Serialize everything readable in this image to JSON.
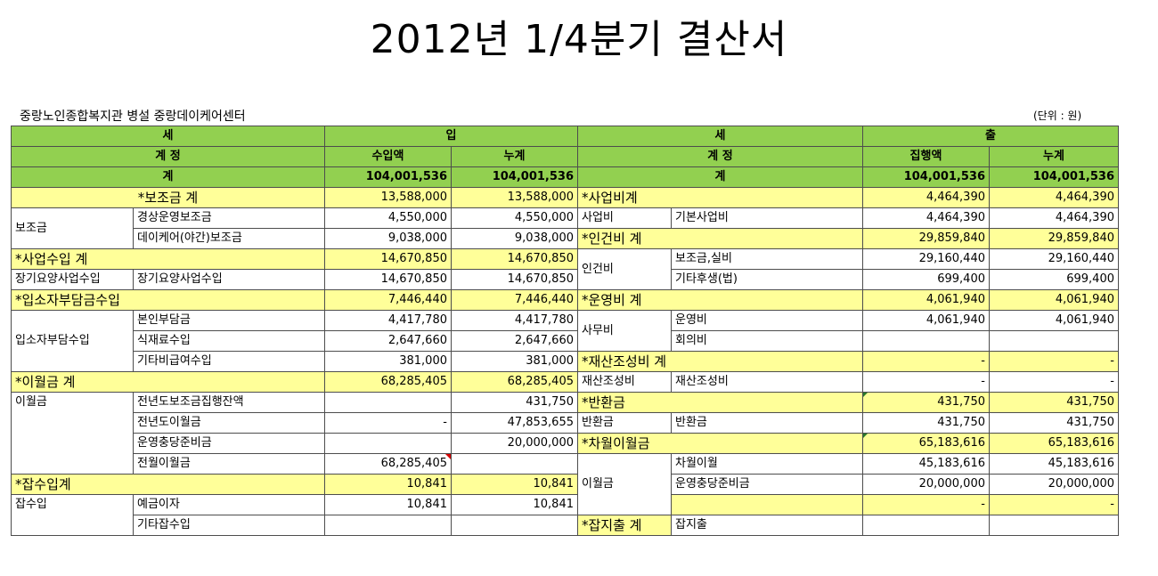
{
  "title": "2012년 1/4분기 결산서",
  "organization": "중랑노인종합복지관 병설 중랑데이케어센터",
  "unit_note": "(단위 : 원)",
  "header": {
    "income_a": "세",
    "income_b": "입",
    "expense_a": "세",
    "expense_b": "출",
    "account": "계 정",
    "income_amount": "수입액",
    "cumulative": "누계",
    "expense_amount": "집행액",
    "total": "계",
    "income_total": "104,001,536",
    "income_cum": "104,001,536",
    "expense_total": "104,001,536",
    "expense_cum": "104,001,536"
  },
  "income": {
    "subsidy_total": {
      "label": "*보조금 계",
      "amount": "13,588,000",
      "cum": "13,588,000"
    },
    "subsidy_group": "보조금",
    "subsidy_op": {
      "label": "경상운영보조금",
      "amount": "4,550,000",
      "cum": "4,550,000"
    },
    "subsidy_day": {
      "label": "데이케어(야간)보조금",
      "amount": "9,038,000",
      "cum": "9,038,000"
    },
    "business_total": {
      "label": "*사업수입 계",
      "amount": "14,670,850",
      "cum": "14,670,850"
    },
    "ltc_group": "장기요양사업수입",
    "ltc": {
      "label": "장기요양사업수입",
      "amount": "14,670,850",
      "cum": "14,670,850"
    },
    "resident_total": {
      "label": "*입소자부담금수입",
      "amount": "7,446,440",
      "cum": "7,446,440"
    },
    "resident_group": "입소자부담수입",
    "self_pay": {
      "label": "본인부담금",
      "amount": "4,417,780",
      "cum": "4,417,780"
    },
    "food": {
      "label": "식재료수입",
      "amount": "2,647,660",
      "cum": "2,647,660"
    },
    "other_nonpay": {
      "label": "기타비급여수입",
      "amount": "381,000",
      "cum": "381,000"
    },
    "carry_total": {
      "label": "*이월금 계",
      "amount": "68,285,405",
      "cum": "68,285,405"
    },
    "carry_group": "이월금",
    "prev_subsidy": {
      "label": "전년도보조금집행잔액",
      "amount": "",
      "cum": "431,750"
    },
    "prev_carry": {
      "label": "전년도이월금",
      "amount": "-",
      "cum": "47,853,655"
    },
    "reserve": {
      "label": "운영충당준비금",
      "amount": "",
      "cum": "20,000,000"
    },
    "prev_month": {
      "label": "전월이월금",
      "amount": "68,285,405",
      "cum": ""
    },
    "misc_total": {
      "label": "*잡수입계",
      "amount": "10,841",
      "cum": "10,841"
    },
    "misc_group": "잡수입",
    "interest": {
      "label": "예금이자",
      "amount": "10,841",
      "cum": "10,841"
    },
    "other_misc": {
      "label": "기타잡수입",
      "amount": "",
      "cum": ""
    }
  },
  "expense": {
    "project_total": {
      "label": "*사업비계",
      "amount": "4,464,390",
      "cum": "4,464,390"
    },
    "project_group": "사업비",
    "basic_project": {
      "label": "기본사업비",
      "amount": "4,464,390",
      "cum": "4,464,390"
    },
    "personnel_total": {
      "label": "*인건비 계",
      "amount": "29,859,840",
      "cum": "29,859,840"
    },
    "personnel_group": "인건비",
    "salary": {
      "label": "보조금,실비",
      "amount": "29,160,440",
      "cum": "29,160,440"
    },
    "welfare": {
      "label": "기타후생(법)",
      "amount": "699,400",
      "cum": "699,400"
    },
    "operation_total": {
      "label": "*운영비 계",
      "amount": "4,061,940",
      "cum": "4,061,940"
    },
    "office_group": "사무비",
    "operation": {
      "label": "운영비",
      "amount": "4,061,940",
      "cum": "4,061,940"
    },
    "meeting": {
      "label": "회의비",
      "amount": "",
      "cum": ""
    },
    "asset_total": {
      "label": "*재산조성비 계",
      "amount": "-",
      "cum": "-"
    },
    "asset_group": "재산조성비",
    "asset": {
      "label": "재산조성비",
      "amount": "-",
      "cum": "-"
    },
    "refund_total": {
      "label": "*반환금",
      "amount": "431,750",
      "cum": "431,750"
    },
    "refund_group": "반환금",
    "refund": {
      "label": "반환금",
      "amount": "431,750",
      "cum": "431,750"
    },
    "next_total": {
      "label": "*차월이월금",
      "amount": "65,183,616",
      "cum": "65,183,616"
    },
    "next_group": "이월금",
    "next_carry": {
      "label": "차월이월",
      "amount": "45,183,616",
      "cum": "45,183,616"
    },
    "next_reserve": {
      "label": "운영충당준비금",
      "amount": "20,000,000",
      "cum": "20,000,000"
    },
    "blank": {
      "amount": "-",
      "cum": "-"
    },
    "misc_total": {
      "label": "*잡지출 계",
      "sub": "잡지출"
    }
  }
}
